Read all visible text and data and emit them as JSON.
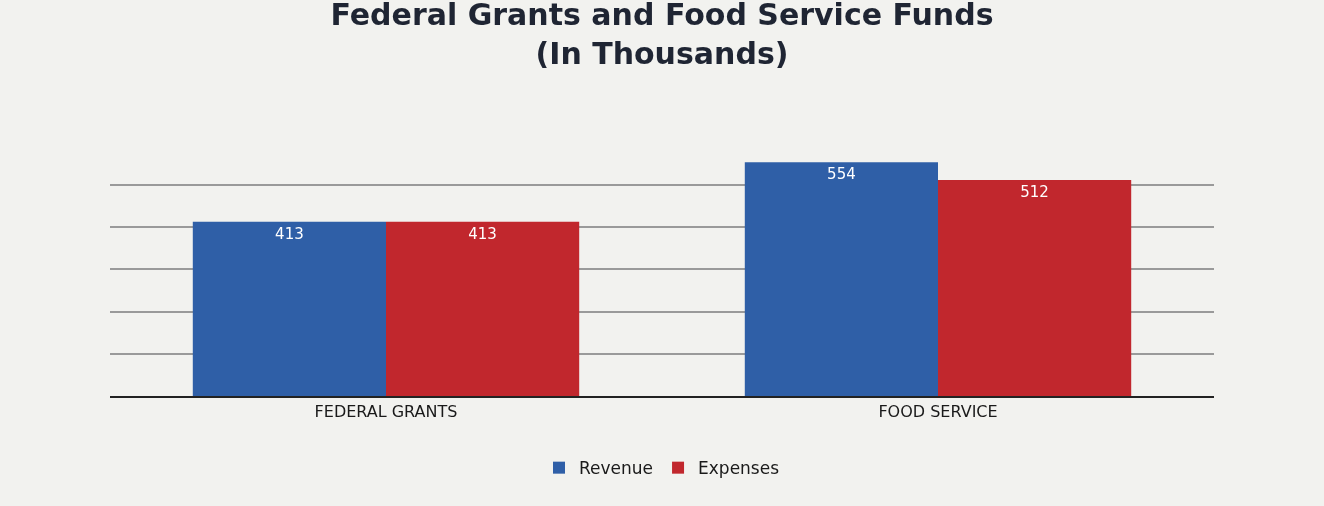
{
  "chart_data": {
    "type": "bar",
    "title": "Federal Grants and Food Service Funds\n(In Thousands)",
    "categories": [
      "FEDERAL GRANTS",
      "FOOD SERVICE"
    ],
    "series": [
      {
        "name": "Revenue",
        "color": "#2f5fa7",
        "values": [
          413,
          554
        ]
      },
      {
        "name": "Expenses",
        "color": "#c1272d",
        "values": [
          413,
          512
        ]
      }
    ],
    "yticks": [
      {
        "value": 0,
        "label": null
      },
      {
        "value": 100,
        "label": null
      },
      {
        "value": 200,
        "label": null
      },
      {
        "value": 300,
        "label": null
      },
      {
        "value": 400,
        "label": null
      },
      {
        "value": 500,
        "label": null
      }
    ],
    "grid": "y",
    "legend": "bottom",
    "data_labels": true,
    "tick_labels": "x"
  }
}
